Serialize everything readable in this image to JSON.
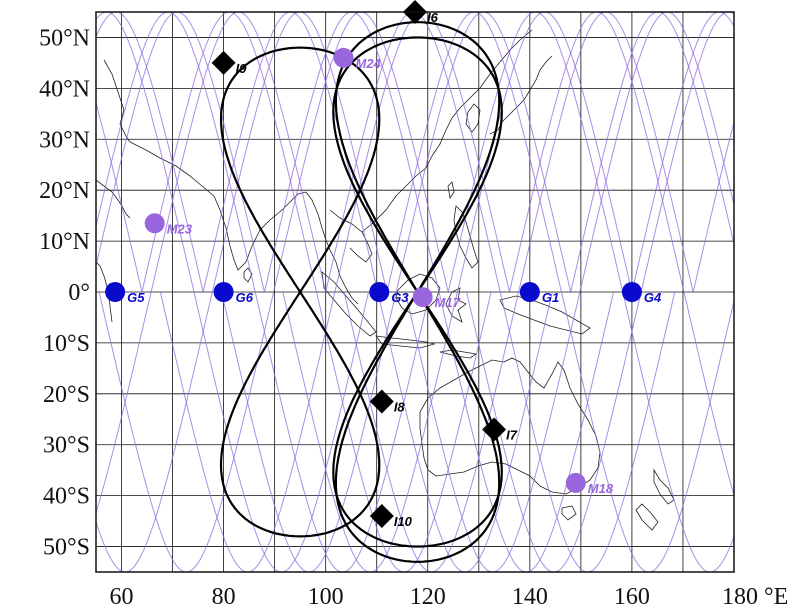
{
  "map": {
    "lon_range": [
      55,
      180
    ],
    "lat_range": [
      -55,
      55
    ],
    "grid_step_deg": 10,
    "x_tick_labels": [
      {
        "lon": 60,
        "text": "60"
      },
      {
        "lon": 80,
        "text": "80"
      },
      {
        "lon": 100,
        "text": "100"
      },
      {
        "lon": 120,
        "text": "120"
      },
      {
        "lon": 140,
        "text": "140"
      },
      {
        "lon": 160,
        "text": "160"
      },
      {
        "lon": 180,
        "text": "180 °E"
      }
    ],
    "y_tick_labels": [
      {
        "lat": 50,
        "text": "50°N"
      },
      {
        "lat": 40,
        "text": "40°N"
      },
      {
        "lat": 30,
        "text": "30°N"
      },
      {
        "lat": 20,
        "text": "20°N"
      },
      {
        "lat": 10,
        "text": "10°N"
      },
      {
        "lat": 0,
        "text": "0°"
      },
      {
        "lat": -10,
        "text": "10°S"
      },
      {
        "lat": -20,
        "text": "20°S"
      },
      {
        "lat": -30,
        "text": "30°S"
      },
      {
        "lat": -40,
        "text": "40°S"
      },
      {
        "lat": -50,
        "text": "50°S"
      }
    ]
  },
  "colors": {
    "geo": "#0a0acc",
    "meo": "#9966dd",
    "meo_track": "#8f6ae0",
    "igso": "#000000",
    "coast": "#222222",
    "grid": "#111111"
  },
  "satellites": {
    "geo": [
      {
        "name": "G1",
        "lon": 140,
        "lat": 0
      },
      {
        "name": "G3",
        "lon": 110.5,
        "lat": 0
      },
      {
        "name": "G4",
        "lon": 160,
        "lat": 0
      },
      {
        "name": "G5",
        "lon": 58.75,
        "lat": 0
      },
      {
        "name": "G6",
        "lon": 80,
        "lat": 0
      }
    ],
    "meo": [
      {
        "name": "M17",
        "lon": 119,
        "lat": -1
      },
      {
        "name": "M18",
        "lon": 149,
        "lat": -37.5
      },
      {
        "name": "M23",
        "lon": 66.5,
        "lat": 13.5
      },
      {
        "name": "M24",
        "lon": 103.5,
        "lat": 46
      }
    ],
    "igso": [
      {
        "name": "I6",
        "lon": 117.5,
        "lat": 55
      },
      {
        "name": "I7",
        "lon": 133,
        "lat": -27
      },
      {
        "name": "I8",
        "lon": 111,
        "lat": -21.5
      },
      {
        "name": "I9",
        "lon": 80,
        "lat": 45
      },
      {
        "name": "I10",
        "lon": 111,
        "lat": -44
      }
    ]
  },
  "igso_tracks": [
    {
      "center_lon": 95,
      "amplitude": 15.5,
      "phase_lat": 48
    },
    {
      "center_lon": 118,
      "amplitude": 16,
      "phase_lat": 53
    },
    {
      "center_lon": 118,
      "amplitude": 16.5,
      "phase_lat": 50
    }
  ],
  "meo_track_family": {
    "inclination": 55,
    "lon_spacing": 12,
    "start_lon": 40
  }
}
